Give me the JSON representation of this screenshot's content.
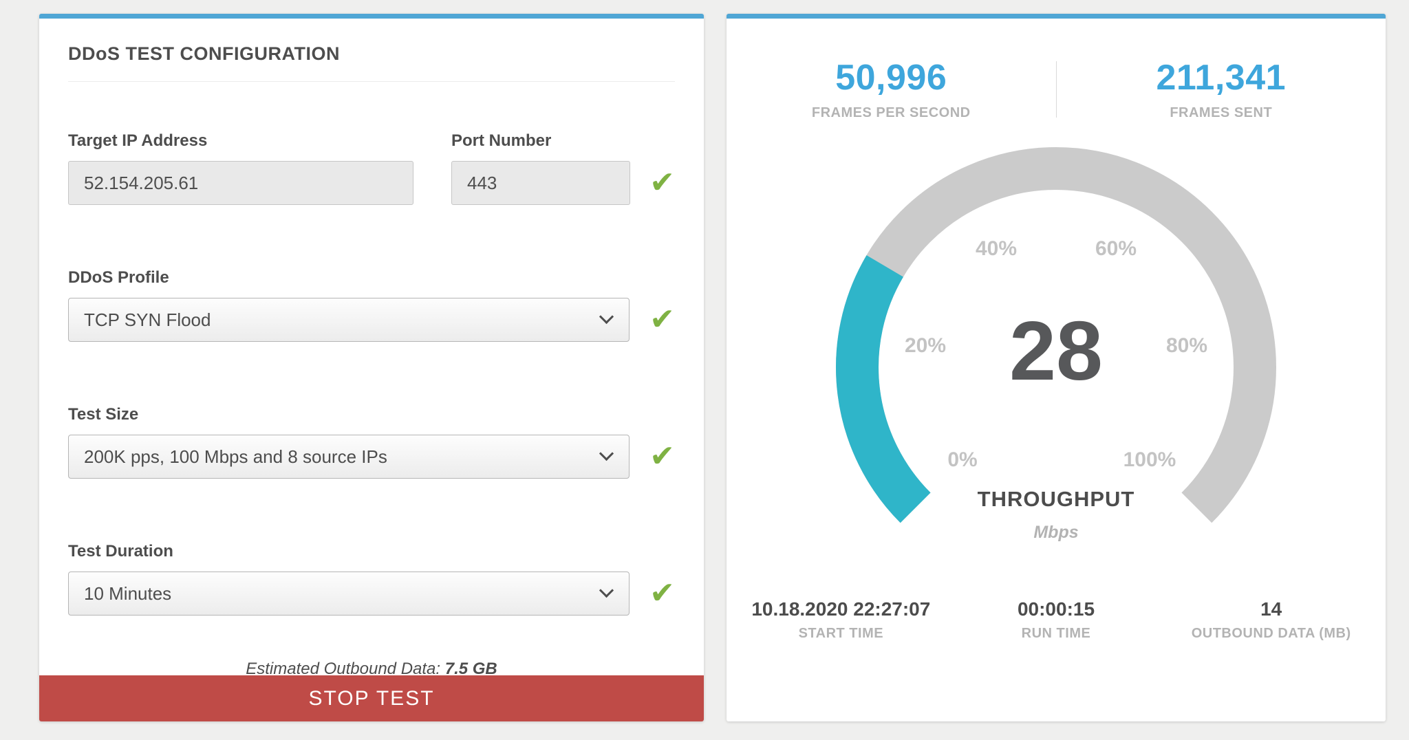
{
  "theme": {
    "accent_blue": "#4fa6d5",
    "stat_blue": "#3ea6dc",
    "gauge_fill": "#2fb5c9",
    "gauge_track": "#cbcbcb",
    "check_green": "#7fb243",
    "button_red": "#bf4b47"
  },
  "config_panel": {
    "title": "DDoS TEST CONFIGURATION",
    "fields": {
      "target_ip": {
        "label": "Target IP Address",
        "value": "52.154.205.61"
      },
      "port": {
        "label": "Port Number",
        "value": "443"
      },
      "profile": {
        "label": "DDoS Profile",
        "value": "TCP SYN Flood"
      },
      "test_size": {
        "label": "Test Size",
        "value": "200K pps, 100 Mbps and 8 source IPs"
      },
      "duration": {
        "label": "Test Duration",
        "value": "10 Minutes"
      }
    },
    "check_icon": "✔",
    "estimated_label": "Estimated Outbound Data:",
    "estimated_value": "7.5 GB",
    "stop_button": "STOP TEST"
  },
  "stats_panel": {
    "top_stats": [
      {
        "value": "50,996",
        "label": "FRAMES PER SECOND"
      },
      {
        "value": "211,341",
        "label": "FRAMES SENT"
      }
    ],
    "bottom_stats": [
      {
        "value": "10.18.2020 22:27:07",
        "label": "START TIME"
      },
      {
        "value": "00:00:15",
        "label": "RUN TIME"
      },
      {
        "value": "14",
        "label": "OUTBOUND DATA (MB)"
      }
    ]
  },
  "chart_data": {
    "type": "gauge",
    "value": 28,
    "min": 0,
    "max": 100,
    "title": "THROUGHPUT",
    "unit": "Mbps",
    "ticks": [
      "0%",
      "20%",
      "40%",
      "60%",
      "80%",
      "100%"
    ],
    "sweep_degrees": 270,
    "start_angle_degrees": 225
  }
}
